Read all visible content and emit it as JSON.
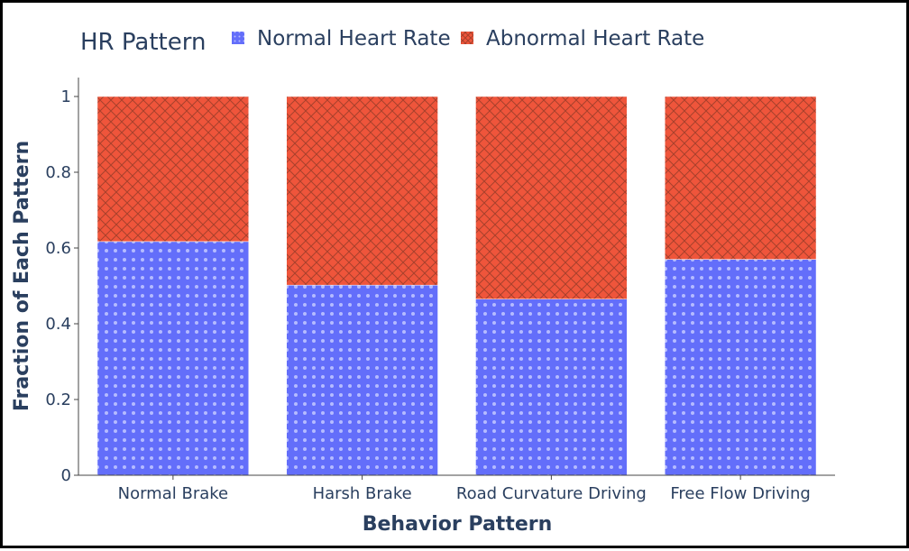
{
  "chart_data": {
    "type": "bar",
    "barmode": "stack",
    "categories": [
      "Normal Brake",
      "Harsh Brake",
      "Road Curvature Driving",
      "Free Flow Driving"
    ],
    "series": [
      {
        "name": "Normal Heart Rate",
        "values": [
          0.617,
          0.502,
          0.465,
          0.57
        ],
        "color": "#636efa",
        "pattern": "dots"
      },
      {
        "name": "Abnormal Heart Rate",
        "values": [
          0.383,
          0.498,
          0.535,
          0.43
        ],
        "color": "#ef553b",
        "pattern": "crosshatch"
      }
    ],
    "legend_title": "HR Pattern",
    "legend_position": "top",
    "xlabel": "Behavior Pattern",
    "ylabel": "Fraction of Each Pattern",
    "ylim": [
      0,
      1
    ],
    "yticks": [
      0,
      0.2,
      0.4,
      0.6,
      0.8,
      1
    ],
    "ytick_labels": [
      "0",
      "0.2",
      "0.4",
      "0.6",
      "0.8",
      "1"
    ],
    "grid": false
  }
}
